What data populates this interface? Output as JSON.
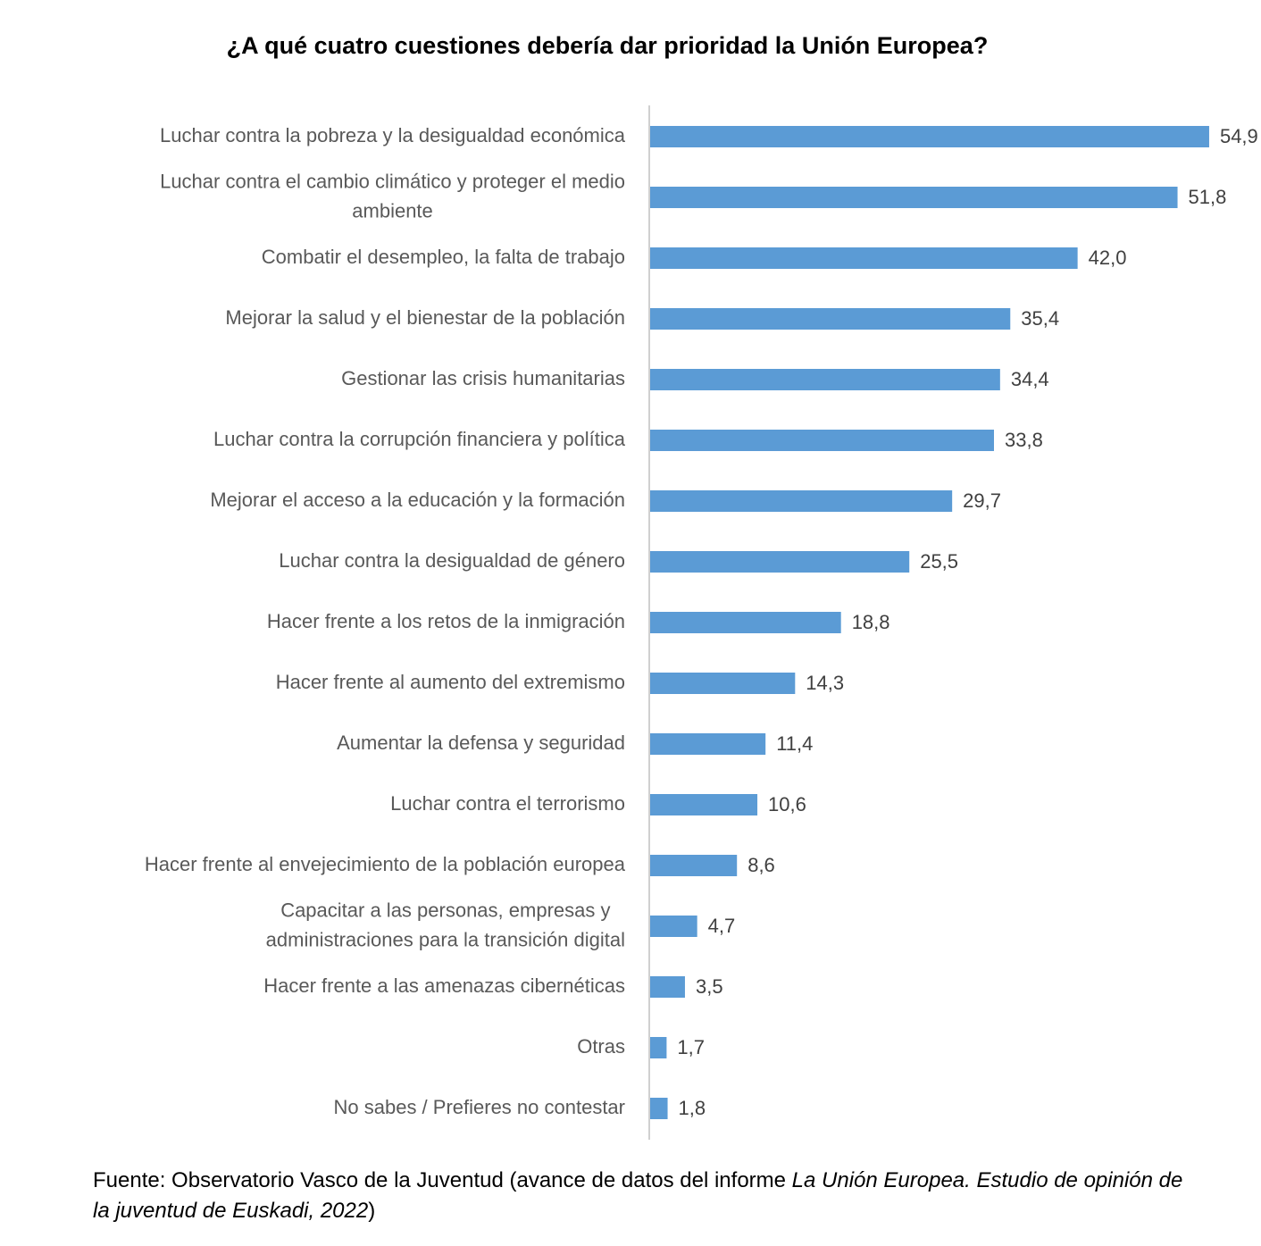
{
  "chart_data": {
    "type": "bar",
    "orientation": "horizontal",
    "title": "¿A qué cuatro cuestiones debería dar prioridad la Unión Europea?",
    "categories": [
      [
        "Luchar contra la pobreza y la desigualdad  económica"
      ],
      [
        "Luchar contra el cambio climático y proteger el  medio",
        "ambiente"
      ],
      [
        "Combatir el desempleo, la falta de trabajo"
      ],
      [
        "Mejorar la salud y el bienestar de la población"
      ],
      [
        "Gestionar las crisis humanitarias"
      ],
      [
        "Luchar contra la corrupción financiera y política"
      ],
      [
        "Mejorar el acceso a la educación y la formación"
      ],
      [
        "Luchar contra la desigualdad de género"
      ],
      [
        "Hacer frente a los retos de la inmigración"
      ],
      [
        "Hacer frente al aumento del extremismo"
      ],
      [
        "Aumentar la defensa y seguridad"
      ],
      [
        "Luchar contra el terrorismo"
      ],
      [
        "Hacer frente al envejecimiento de la población  europea"
      ],
      [
        "Capacitar a las personas, empresas y",
        "administraciones para la transición digital"
      ],
      [
        "Hacer frente a las amenazas cibernéticas"
      ],
      [
        "Otras"
      ],
      [
        "No sabes / Prefieres no contestar"
      ]
    ],
    "values": [
      54.9,
      51.8,
      42.0,
      35.4,
      34.4,
      33.8,
      29.7,
      25.5,
      18.8,
      14.3,
      11.4,
      10.6,
      8.6,
      4.7,
      3.5,
      1.7,
      1.8
    ],
    "value_labels": [
      "54,9",
      "51,8",
      "42,0",
      "35,4",
      "34,4",
      "33,8",
      "29,7",
      "25,5",
      "18,8",
      "14,3",
      "11,4",
      "10,6",
      "8,6",
      "4,7",
      "3,5",
      "1,7",
      "1,8"
    ],
    "xlim": [
      0,
      60
    ],
    "grid": false,
    "legend": "none",
    "bar_color": "#5B9BD5"
  },
  "source": {
    "prefix": "Fuente: Observatorio Vasco de la Juventud (avance de datos del informe ",
    "italic": "La Unión Europea. Estudio de opinión de la juventud de Euskadi, 2022",
    "suffix": ")"
  }
}
